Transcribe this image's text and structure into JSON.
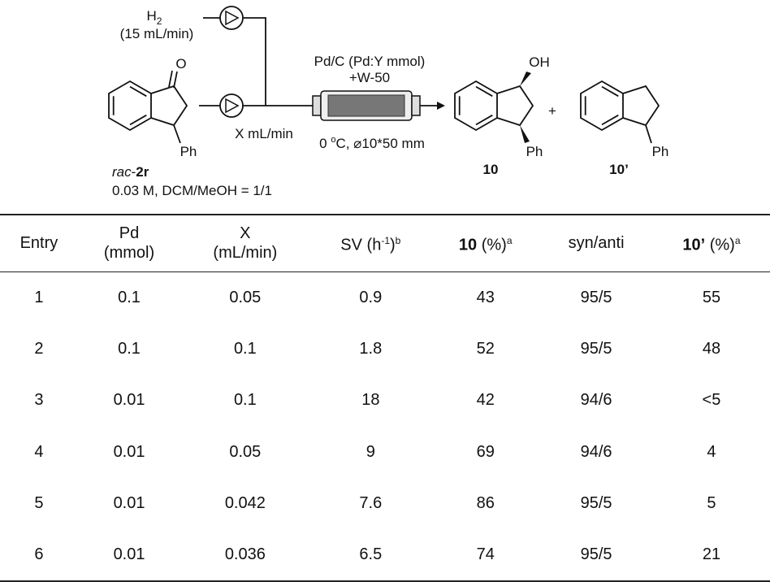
{
  "scheme": {
    "h2": {
      "main": "H",
      "sub": "2"
    },
    "h2_flow": "(15 mL/min)",
    "substrate_flow": "X mL/min",
    "catalyst": "Pd/C (Pd:Y mmol)",
    "additive": "+W-50",
    "conditions": {
      "pre": "0 ",
      "sup": "o",
      "post": "C, ⌀10*50 mm"
    },
    "substrate": {
      "italic": "rac",
      "text": "-",
      "bold": "2r"
    },
    "concentration": "0.03 M, DCM/MeOH = 1/1",
    "carbonyl": "O",
    "hydroxyl": "OH",
    "phenyl": [
      "Ph",
      "Ph",
      "Ph"
    ],
    "plus": "+",
    "products": [
      "10",
      "10’"
    ]
  },
  "table": {
    "header": [
      {
        "text": "Entry"
      },
      {
        "line1": "Pd",
        "line2": "(mmol)"
      },
      {
        "line1": "X",
        "line2": "(mL/min)"
      },
      {
        "text": "SV  (h",
        "sup": "-1",
        "after": ")",
        "note": "b"
      },
      {
        "bold": "10",
        "text": " (%)",
        "note": "a"
      },
      {
        "text": "syn/anti"
      },
      {
        "bold": "10’",
        "text": " (%)",
        "note": "a"
      }
    ],
    "rows": [
      [
        "1",
        "0.1",
        "0.05",
        "0.9",
        "43",
        "95/5",
        "55"
      ],
      [
        "2",
        "0.1",
        "0.1",
        "1.8",
        "52",
        "95/5",
        "48"
      ],
      [
        "3",
        "0.01",
        "0.1",
        "18",
        "42",
        "94/6",
        "<5"
      ],
      [
        "4",
        "0.01",
        "0.05",
        "9",
        "69",
        "94/6",
        "4"
      ],
      [
        "5",
        "0.01",
        "0.042",
        "7.6",
        "86",
        "95/5",
        "5"
      ],
      [
        "6",
        "0.01",
        "0.036",
        "6.5",
        "74",
        "95/5",
        "21"
      ]
    ]
  }
}
